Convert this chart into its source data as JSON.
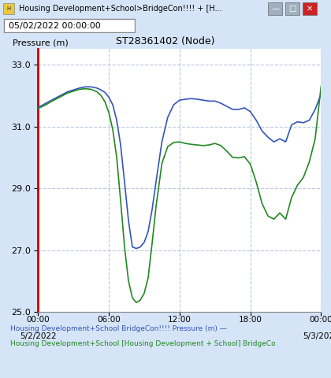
{
  "title": "ST28361402 (Node)",
  "ylabel": "Pressure (m)",
  "datetime_label": "05/02/2022 00:00:00",
  "window_title": "Housing Development+School>BridgeCon!!!! + [H...",
  "ytick_values": [
    25.0,
    27.0,
    29.0,
    31.0,
    33.0
  ],
  "ylim": [
    25.0,
    33.5
  ],
  "xlim": [
    0,
    288
  ],
  "legend_blue": "Housing Development+School BridgeCon!!!! Pressure (m) —",
  "legend_green": "Housing Development+School [Housing Development + School] BridgeCo",
  "bg_color": "#d6e4f7",
  "plot_bg_color": "#ffffff",
  "grid_color": "#b8c8dc",
  "blue_color": "#3355bb",
  "green_color": "#228822",
  "red_axis_color": "#cc0000",
  "title_bar_color": "#c8d8ec",
  "btn_min_color": "#a0b0c0",
  "btn_max_color": "#a0b0c0",
  "btn_close_color": "#cc2222",
  "blue_x": [
    0,
    4,
    8,
    12,
    18,
    24,
    30,
    36,
    42,
    48,
    54,
    60,
    64,
    68,
    72,
    76,
    80,
    84,
    88,
    92,
    96,
    100,
    104,
    108,
    112,
    116,
    120,
    126,
    132,
    138,
    144,
    150,
    156,
    162,
    168,
    174,
    180,
    186,
    192,
    198,
    204,
    210,
    216,
    222,
    228,
    234,
    240,
    246,
    252,
    258,
    264,
    270,
    276,
    282,
    288
  ],
  "blue_y": [
    31.62,
    31.68,
    31.75,
    31.82,
    31.92,
    32.02,
    32.12,
    32.18,
    32.24,
    32.28,
    32.28,
    32.24,
    32.18,
    32.1,
    31.95,
    31.7,
    31.2,
    30.4,
    29.2,
    27.95,
    27.1,
    27.05,
    27.1,
    27.25,
    27.6,
    28.3,
    29.2,
    30.5,
    31.3,
    31.7,
    31.85,
    31.88,
    31.9,
    31.88,
    31.85,
    31.82,
    31.82,
    31.75,
    31.65,
    31.55,
    31.55,
    31.6,
    31.48,
    31.2,
    30.85,
    30.65,
    30.5,
    30.6,
    30.5,
    31.05,
    31.15,
    31.12,
    31.2,
    31.55,
    32.05
  ],
  "green_x": [
    0,
    4,
    8,
    12,
    18,
    24,
    30,
    36,
    42,
    48,
    54,
    60,
    64,
    68,
    72,
    76,
    80,
    84,
    88,
    92,
    96,
    100,
    104,
    108,
    112,
    116,
    120,
    126,
    132,
    138,
    144,
    150,
    156,
    162,
    168,
    174,
    180,
    186,
    192,
    198,
    204,
    210,
    216,
    222,
    228,
    234,
    240,
    246,
    252,
    258,
    264,
    270,
    276,
    282,
    288
  ],
  "green_y": [
    31.58,
    31.64,
    31.7,
    31.78,
    31.88,
    31.98,
    32.08,
    32.14,
    32.2,
    32.22,
    32.2,
    32.12,
    32.0,
    31.8,
    31.45,
    30.9,
    30.0,
    28.6,
    27.1,
    26.0,
    25.45,
    25.3,
    25.38,
    25.6,
    26.1,
    27.2,
    28.4,
    29.8,
    30.35,
    30.48,
    30.5,
    30.45,
    30.42,
    30.4,
    30.38,
    30.4,
    30.45,
    30.38,
    30.2,
    30.0,
    29.98,
    30.02,
    29.78,
    29.2,
    28.5,
    28.1,
    28.0,
    28.2,
    28.0,
    28.7,
    29.1,
    29.35,
    29.85,
    30.6,
    32.3
  ]
}
